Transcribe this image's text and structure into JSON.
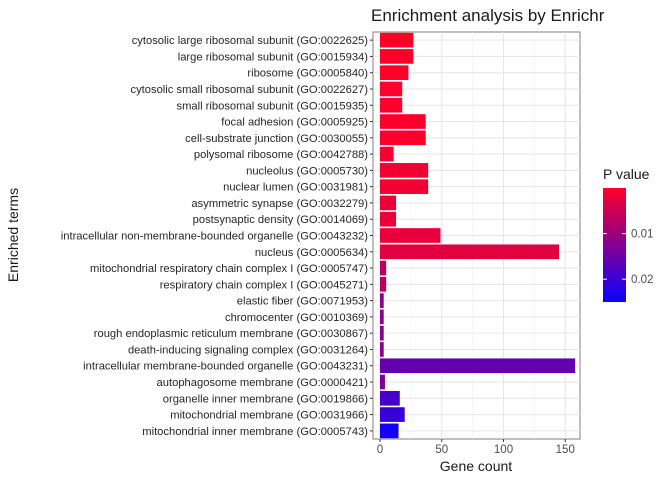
{
  "chart_data": {
    "type": "bar",
    "orientation": "horizontal",
    "title": "Enrichment analysis by Enrichr",
    "xlabel": "Gene count",
    "ylabel": "Enriched terms",
    "xlim": [
      0,
      160
    ],
    "xticks": [
      0,
      50,
      100,
      150
    ],
    "grid": true,
    "legend": {
      "title": "P value",
      "placement": "right",
      "ticks": [
        0.01,
        0.02
      ],
      "low_color": "#ff0026",
      "high_color": "#0a00ff",
      "range": [
        0,
        0.025
      ]
    },
    "categories": [
      "cytosolic large ribosomal subunit (GO:0022625)",
      "large ribosomal subunit (GO:0015934)",
      "ribosome (GO:0005840)",
      "cytosolic small ribosomal subunit (GO:0022627)",
      "small ribosomal subunit (GO:0015935)",
      "focal adhesion (GO:0005925)",
      "cell-substrate junction (GO:0030055)",
      "polysomal ribosome (GO:0042788)",
      "nucleolus (GO:0005730)",
      "nuclear lumen (GO:0031981)",
      "asymmetric synapse (GO:0032279)",
      "postsynaptic density (GO:0014069)",
      "intracellular non-membrane-bounded organelle (GO:0043232)",
      "nucleus (GO:0005634)",
      "mitochondrial respiratory chain complex I (GO:0005747)",
      "respiratory chain complex I (GO:0045271)",
      "elastic fiber (GO:0071953)",
      "chromocenter (GO:0010369)",
      "rough endoplasmic reticulum membrane (GO:0030867)",
      "death-inducing signaling complex (GO:0031264)",
      "intracellular membrane-bounded organelle (GO:0043231)",
      "autophagosome membrane (GO:0000421)",
      "organelle inner membrane (GO:0019866)",
      "mitochondrial membrane (GO:0031966)",
      "mitochondrial inner membrane (GO:0005743)"
    ],
    "values": [
      27,
      27,
      23,
      18,
      18,
      37,
      37,
      11,
      39,
      39,
      13,
      13,
      49,
      145,
      5,
      5,
      3,
      3,
      3,
      3,
      158,
      4,
      16,
      20,
      15
    ],
    "p_values": [
      0.0,
      0.0,
      0.0,
      0.0005,
      0.0005,
      0.0005,
      0.0005,
      0.001,
      0.0015,
      0.0015,
      0.002,
      0.002,
      0.0025,
      0.003,
      0.007,
      0.007,
      0.012,
      0.012,
      0.012,
      0.012,
      0.016,
      0.013,
      0.019,
      0.0205,
      0.024
    ]
  }
}
